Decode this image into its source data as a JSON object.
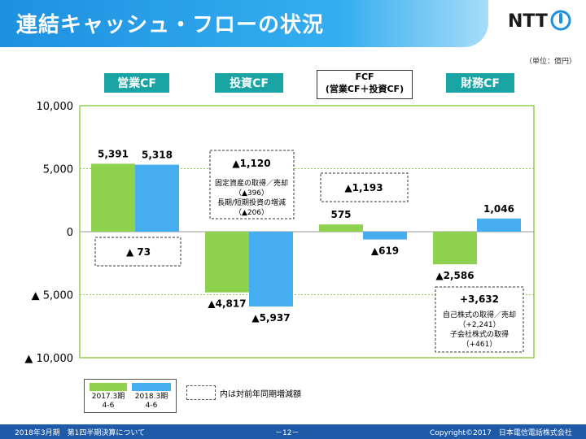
{
  "header": {
    "title": "連結キャッシュ・フローの状況"
  },
  "logo": {
    "text": "NTT"
  },
  "unit": "（単位：億円）",
  "categories_labels": {
    "op": "営業CF",
    "inv": "投資CF",
    "fcf_line1": "FCF",
    "fcf_line2": "(営業CF＋投資CF)",
    "fin": "財務CF"
  },
  "chart_data": {
    "type": "bar",
    "categories": [
      "営業CF",
      "投資CF",
      "FCF",
      "財務CF"
    ],
    "series": [
      {
        "name": "2017.3期 4-6",
        "values": [
          5391,
          -4817,
          575,
          -2586
        ],
        "labels": [
          "5,391",
          "▲4,817",
          "575",
          "▲2,586"
        ]
      },
      {
        "name": "2018.3期 4-6",
        "values": [
          5318,
          -5937,
          -619,
          1046
        ],
        "labels": [
          "5,318",
          "▲5,937",
          "▲619",
          "1,046"
        ]
      }
    ],
    "ylim": [
      -10000,
      10000
    ],
    "yticks": [
      10000,
      5000,
      0,
      -5000,
      -10000
    ],
    "ytick_labels": [
      "10,000",
      "5,000",
      "0",
      "▲ 5,000",
      "▲ 10,000"
    ],
    "colors": [
      "#8ed14f",
      "#46aef0"
    ],
    "grid": true
  },
  "annotations": {
    "op_diff": "▲ 73",
    "inv_diff": "▲1,120",
    "inv_note1": "固定資産の取得／売却",
    "inv_note2": "（▲396）",
    "inv_note3": "長期/短期投資の増減",
    "inv_note4": "（▲206）",
    "fcf_diff": "▲1,193",
    "fin_diff": "+3,632",
    "fin_note1": "自己株式の取得／売却",
    "fin_note2": "（+2,241）",
    "fin_note3": "子会社株式の取得",
    "fin_note4": "（+461）"
  },
  "legend": {
    "a_line1": "2017.3期",
    "a_line2": "4-6",
    "b_line1": "2018.3期",
    "b_line2": "4-6",
    "dash_text": "内は対前年同期増減額"
  },
  "footer": {
    "left": "2018年3月期　第1四半期決算について",
    "center": "－12－",
    "right": "Copyright©2017　日本電信電話株式会社"
  }
}
